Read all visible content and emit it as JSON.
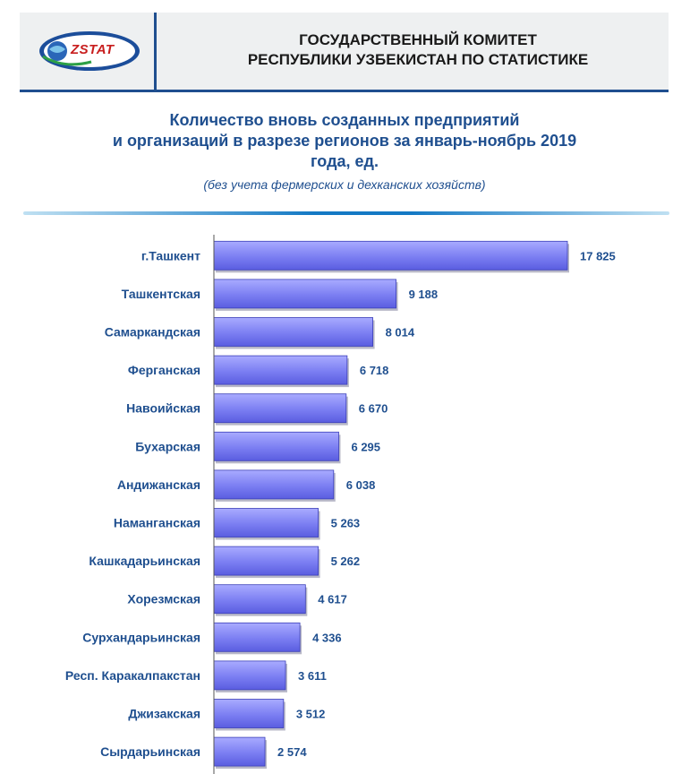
{
  "header": {
    "logo_text": "ZSTAT",
    "org_line1": "ГОСУДАРСТВЕННЫЙ КОМИТЕТ",
    "org_line2": "РЕСПУБЛИКИ УЗБЕКИСТАН ПО СТАТИСТИКЕ"
  },
  "colors": {
    "bar": "#7b7ef2",
    "bar_edge": "#3b3fb8",
    "text": "#1f4f8f"
  },
  "chart_data": {
    "type": "bar",
    "orientation": "horizontal",
    "title_lines": [
      "Количество вновь созданных предприятий",
      "и организаций в разрезе регионов за январь-ноябрь 2019",
      "года, ед."
    ],
    "subtitle": "(без учета фермерских и дехканских хозяйств)",
    "categories": [
      "г.Ташкент",
      "Ташкентская",
      "Самаркандская",
      "Ферганская",
      "Навоийская",
      "Бухарская",
      "Андижанская",
      "Наманганская",
      "Кашкадарьинская",
      "Хорезмская",
      "Сурхандарьинская",
      "Респ. Каракалпакстан",
      "Джизакская",
      "Сырдарьинская"
    ],
    "values": [
      17825,
      9188,
      8014,
      6718,
      6670,
      6295,
      6038,
      5263,
      5262,
      4617,
      4336,
      3611,
      3512,
      2574
    ],
    "value_labels": [
      "17 825",
      "9 188",
      "8 014",
      "6 718",
      "6 670",
      "6 295",
      "6 038",
      "5 263",
      "5 262",
      "4 617",
      "4 336",
      "3 611",
      "3 512",
      "2 574"
    ],
    "xlim": [
      0,
      20000
    ],
    "grid": false,
    "legend": "none"
  }
}
